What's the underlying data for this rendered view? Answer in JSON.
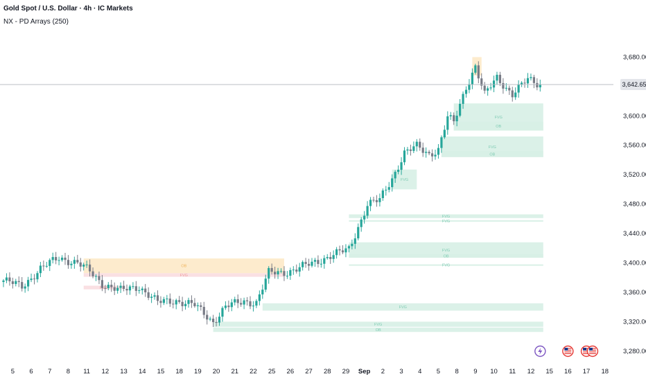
{
  "header": {
    "title": "Gold Spot / U.S. Dollar · 4h · IC Markets",
    "indicator": "NX - PD Arrays (250)"
  },
  "colors": {
    "up": "#26a69a",
    "down": "#787b86",
    "fvg_bull_fill": "#d7efe6",
    "fvg_bear_fill": "#fadde0",
    "ob_fill": "#fde9c8",
    "price_line": "#b2b5be",
    "price_tag_bg": "#e3e5ea"
  },
  "chart_data": {
    "type": "candlestick",
    "symbol": "XAUUSD",
    "timeframe": "4h",
    "last_price": 3642.65,
    "last_price_label": "3,642.65",
    "ylim": [
      3260,
      3720
    ],
    "y_ticks": [
      3280,
      3320,
      3360,
      3400,
      3440,
      3480,
      3520,
      3560,
      3600,
      3640,
      3680
    ],
    "y_tick_labels": [
      "3,280.00",
      "3,320.00",
      "3,360.00",
      "3,400.00",
      "3,440.00",
      "3,480.00",
      "3,520.00",
      "3,560.00",
      "3,600.00",
      "3,640.00",
      "3,680.00"
    ],
    "x_ticks": [
      {
        "label": "5",
        "bar": 3
      },
      {
        "label": "6",
        "bar": 9
      },
      {
        "label": "7",
        "bar": 15
      },
      {
        "label": "8",
        "bar": 21
      },
      {
        "label": "11",
        "bar": 27
      },
      {
        "label": "12",
        "bar": 33
      },
      {
        "label": "13",
        "bar": 39
      },
      {
        "label": "14",
        "bar": 45
      },
      {
        "label": "15",
        "bar": 51
      },
      {
        "label": "18",
        "bar": 57
      },
      {
        "label": "19",
        "bar": 63
      },
      {
        "label": "20",
        "bar": 69
      },
      {
        "label": "21",
        "bar": 75
      },
      {
        "label": "22",
        "bar": 81
      },
      {
        "label": "25",
        "bar": 87
      },
      {
        "label": "26",
        "bar": 93
      },
      {
        "label": "27",
        "bar": 99
      },
      {
        "label": "28",
        "bar": 105
      },
      {
        "label": "29",
        "bar": 111
      },
      {
        "label": "Sep",
        "bar": 117
      },
      {
        "label": "2",
        "bar": 123
      },
      {
        "label": "3",
        "bar": 129
      },
      {
        "label": "4",
        "bar": 135
      },
      {
        "label": "5",
        "bar": 141
      },
      {
        "label": "8",
        "bar": 147
      },
      {
        "label": "9",
        "bar": 153
      },
      {
        "label": "10",
        "bar": 159
      },
      {
        "label": "11",
        "bar": 165
      },
      {
        "label": "12",
        "bar": 171
      },
      {
        "label": "15",
        "bar": 177
      },
      {
        "label": "16",
        "bar": 183
      },
      {
        "label": "17",
        "bar": 189
      },
      {
        "label": "18",
        "bar": 195
      }
    ],
    "close_path": [
      [
        0,
        3376
      ],
      [
        6,
        3368
      ],
      [
        12,
        3392
      ],
      [
        18,
        3407
      ],
      [
        24,
        3400
      ],
      [
        28,
        3388
      ],
      [
        32,
        3372
      ],
      [
        38,
        3362
      ],
      [
        44,
        3368
      ],
      [
        50,
        3346
      ],
      [
        56,
        3349
      ],
      [
        62,
        3342
      ],
      [
        68,
        3320
      ],
      [
        72,
        3340
      ],
      [
        78,
        3348
      ],
      [
        82,
        3346
      ],
      [
        86,
        3386
      ],
      [
        92,
        3388
      ],
      [
        96,
        3393
      ],
      [
        100,
        3399
      ],
      [
        106,
        3410
      ],
      [
        112,
        3418
      ],
      [
        118,
        3480
      ],
      [
        122,
        3485
      ],
      [
        126,
        3515
      ],
      [
        130,
        3550
      ],
      [
        134,
        3558
      ],
      [
        138,
        3548
      ],
      [
        141,
        3555
      ],
      [
        144,
        3598
      ],
      [
        146,
        3590
      ],
      [
        150,
        3640
      ],
      [
        153,
        3668
      ],
      [
        156,
        3628
      ],
      [
        160,
        3652
      ],
      [
        165,
        3630
      ],
      [
        170,
        3649
      ],
      [
        174,
        3642.65
      ]
    ],
    "zones": [
      {
        "kind": "ob",
        "label": "OB",
        "x0": 26,
        "x1": 91,
        "y0": 3386,
        "y1": 3406
      },
      {
        "kind": "fvg_bear",
        "label": "FVG",
        "x0": 26,
        "x1": 91,
        "y0": 3381,
        "y1": 3386
      },
      {
        "kind": "fvg_bear",
        "label": "FVG",
        "x0": 26,
        "x1": 39,
        "y0": 3364,
        "y1": 3369
      },
      {
        "kind": "fvg_bull",
        "label": "FVG",
        "x0": 84,
        "x1": 175,
        "y0": 3335,
        "y1": 3345
      },
      {
        "kind": "fvg_bull",
        "label": "FVG",
        "x0": 68,
        "x1": 175,
        "y0": 3313,
        "y1": 3320
      },
      {
        "kind": "fvg_bull",
        "label": "OB",
        "x0": 68,
        "x1": 175,
        "y0": 3306,
        "y1": 3312
      },
      {
        "kind": "fvg_bull",
        "label": "FVG",
        "x0": 112,
        "x1": 175,
        "y0": 3396,
        "y1": 3398
      },
      {
        "kind": "fvg_bull",
        "label": "FVG",
        "x0": 112,
        "x1": 175,
        "y0": 3407,
        "y1": 3428
      },
      {
        "kind": "fvg_bull",
        "label": "OB",
        "x0": 112,
        "x1": 175,
        "y0": 3407,
        "y1": 3412
      },
      {
        "kind": "fvg_bull",
        "label": "FVG",
        "x0": 112,
        "x1": 175,
        "y0": 3456,
        "y1": 3458
      },
      {
        "kind": "fvg_bull",
        "label": "FVG",
        "x0": 112,
        "x1": 175,
        "y0": 3461,
        "y1": 3466
      },
      {
        "kind": "fvg_bull",
        "label": "FVG",
        "x0": 126,
        "x1": 134,
        "y0": 3500,
        "y1": 3527
      },
      {
        "kind": "fvg_bull",
        "label": "FVG",
        "x0": 142,
        "x1": 175,
        "y0": 3544,
        "y1": 3572
      },
      {
        "kind": "fvg_bull",
        "label": "OB",
        "x0": 142,
        "x1": 175,
        "y0": 3544,
        "y1": 3552
      },
      {
        "kind": "fvg_bull",
        "label": "FVG",
        "x0": 146,
        "x1": 175,
        "y0": 3580,
        "y1": 3617
      },
      {
        "kind": "fvg_bull",
        "label": "OB",
        "x0": 146,
        "x1": 175,
        "y0": 3580,
        "y1": 3592
      },
      {
        "kind": "ob",
        "label": "",
        "x0": 152,
        "x1": 155,
        "y0": 3655,
        "y1": 3680
      }
    ],
    "events": [
      {
        "name": "lightning-icon",
        "bar": 174,
        "color": "#7e57c2"
      },
      {
        "name": "us-flag-icon",
        "bar": 183,
        "color": "#e53935"
      },
      {
        "name": "us-flag-icon",
        "bar": 189,
        "color": "#e53935"
      },
      {
        "name": "us-flag-icon",
        "bar": 191,
        "color": "#e53935"
      }
    ]
  }
}
